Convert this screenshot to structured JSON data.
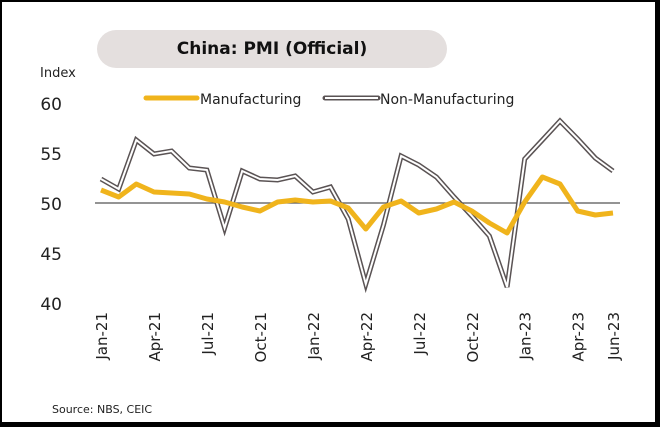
{
  "chart_data": {
    "type": "line",
    "title": "China: PMI (Official)",
    "ylabel": "Index",
    "xlabel": "",
    "ylim": [
      40,
      60
    ],
    "yticks": [
      40,
      45,
      50,
      55,
      60
    ],
    "reference_line": 50,
    "x": [
      "Jan-21",
      "Feb-21",
      "Mar-21",
      "Apr-21",
      "May-21",
      "Jun-21",
      "Jul-21",
      "Aug-21",
      "Sep-21",
      "Oct-21",
      "Nov-21",
      "Dec-21",
      "Jan-22",
      "Feb-22",
      "Mar-22",
      "Apr-22",
      "May-22",
      "Jun-22",
      "Jul-22",
      "Aug-22",
      "Sep-22",
      "Oct-22",
      "Nov-22",
      "Dec-22",
      "Jan-23",
      "Feb-23",
      "Mar-23",
      "Apr-23",
      "May-23",
      "Jun-23"
    ],
    "xtick_labels": [
      "Jan-21",
      "Apr-21",
      "Jul-21",
      "Oct-21",
      "Jan-22",
      "Apr-22",
      "Jul-22",
      "Oct-22",
      "Jan-23",
      "Apr-23",
      "Jun-23"
    ],
    "xtick_index": [
      0,
      3,
      6,
      9,
      12,
      15,
      18,
      21,
      24,
      27,
      29
    ],
    "series": [
      {
        "name": "Manufacturing",
        "color": "#f0b41c",
        "values": [
          51.3,
          50.6,
          51.9,
          51.1,
          51.0,
          50.9,
          50.4,
          50.1,
          49.6,
          49.2,
          50.1,
          50.3,
          50.1,
          50.2,
          49.5,
          47.4,
          49.6,
          50.2,
          49.0,
          49.4,
          50.1,
          49.2,
          48.0,
          47.0,
          50.1,
          52.6,
          51.9,
          49.2,
          48.8,
          49.0
        ]
      },
      {
        "name": "Non-Manufacturing",
        "color": "#5a5354",
        "values": [
          52.4,
          51.4,
          56.3,
          54.9,
          55.2,
          53.5,
          53.3,
          47.5,
          53.2,
          52.4,
          52.3,
          52.7,
          51.1,
          51.6,
          48.4,
          41.9,
          47.8,
          54.7,
          53.8,
          52.6,
          50.6,
          48.7,
          46.7,
          41.6,
          54.4,
          56.3,
          58.2,
          56.4,
          54.5,
          53.2
        ]
      }
    ],
    "legend": "top",
    "source": "Source: NBS, CEIC"
  }
}
